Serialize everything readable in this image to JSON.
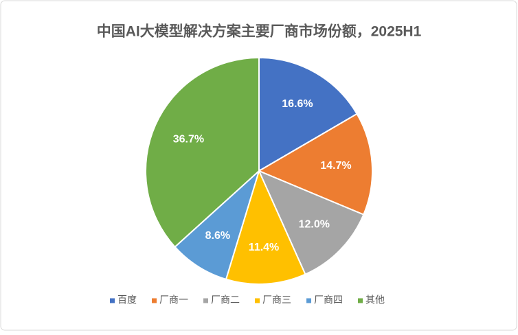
{
  "chart_data": {
    "type": "pie",
    "title": "中国AI大模型解决方案主要厂商市场份额，2025H1",
    "categories": [
      "百度",
      "厂商一",
      "厂商二",
      "厂商三",
      "厂商四",
      "其他"
    ],
    "values": [
      16.6,
      14.7,
      12.0,
      11.4,
      8.6,
      36.7
    ],
    "value_labels": [
      "16.6%",
      "14.7%",
      "12.0%",
      "11.4%",
      "8.6%",
      "36.7%"
    ],
    "colors": [
      "#4472c4",
      "#ed7d31",
      "#a5a5a5",
      "#ffc000",
      "#5b9bd5",
      "#70ad47"
    ],
    "legend": "bottom"
  }
}
